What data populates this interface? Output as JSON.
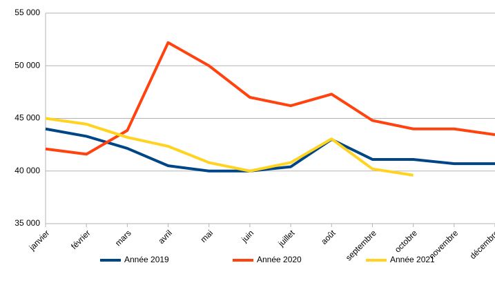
{
  "chart_data": {
    "type": "line",
    "categories": [
      "janvier",
      "février",
      "mars",
      "avril",
      "mai",
      "juin",
      "juillet",
      "août",
      "septembre",
      "octobre",
      "novembre",
      "décembre"
    ],
    "series": [
      {
        "name": "Année 2019",
        "color": "#004586",
        "values": [
          44000,
          43300,
          42150,
          40500,
          40000,
          40000,
          40400,
          43000,
          41100,
          41100,
          40700,
          40700
        ]
      },
      {
        "name": "Année 2020",
        "color": "#ff420e",
        "values": [
          42100,
          41600,
          43850,
          52200,
          50000,
          47000,
          46200,
          47300,
          44800,
          44000,
          44000,
          43450
        ]
      },
      {
        "name": "Année 2021",
        "color": "#ffd320",
        "values": [
          45000,
          44450,
          43200,
          42350,
          40800,
          40000,
          40800,
          43050,
          40200,
          39600,
          null,
          null
        ]
      }
    ],
    "ylim": [
      35000,
      55000
    ],
    "yticks": [
      {
        "value": 35000,
        "label": "35 000"
      },
      {
        "value": 40000,
        "label": "40 000"
      },
      {
        "value": 45000,
        "label": "45 000"
      },
      {
        "value": 50000,
        "label": "50 000"
      },
      {
        "value": 55000,
        "label": "55 000"
      }
    ],
    "grid": true,
    "legend": "bottom"
  }
}
